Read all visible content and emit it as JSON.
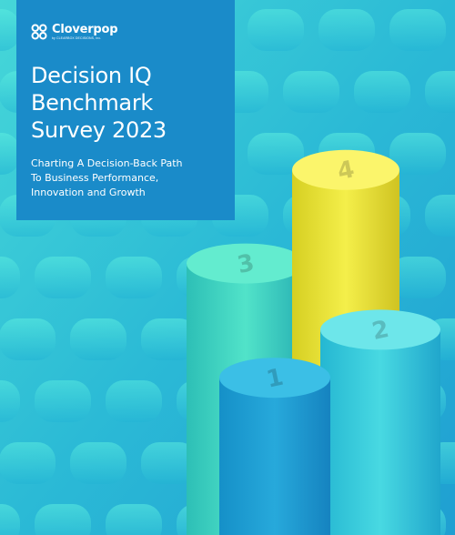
{
  "brand": {
    "name": "Cloverpop",
    "tagline": "by CLEARBOX DECISIONS, Inc.",
    "logo_icon": "clover-icon"
  },
  "cover": {
    "title_lines": [
      "Decision IQ",
      "Benchmark",
      "Survey 2023"
    ],
    "subtitle_lines": [
      "Charting A Decision-Back Path",
      "To Business Performance,",
      "Innovation and Growth"
    ]
  },
  "chart_data": {
    "type": "bar",
    "categories": [
      "1",
      "2",
      "3",
      "4"
    ],
    "values": [
      1,
      2,
      3,
      4
    ]
  },
  "colors": {
    "panel": "#1a8bc9",
    "background": "#2ec3d6",
    "bar_1": "#1e9fd1",
    "bar_2": "#39d0dc",
    "bar_3": "#3fd7c0",
    "bar_4": "#f0e83a"
  }
}
